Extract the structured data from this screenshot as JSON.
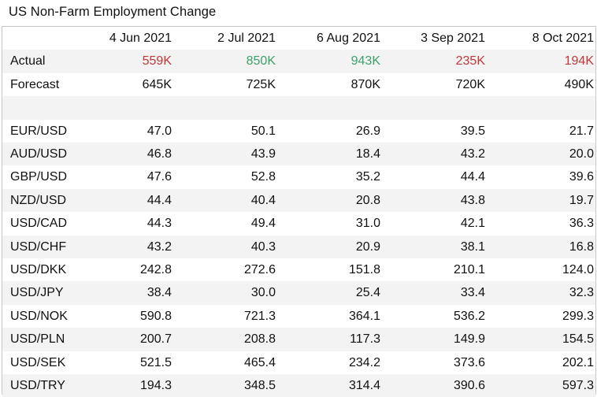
{
  "title": "US Non-Farm Employment Change",
  "columns": [
    "",
    "4 Jun 2021",
    "2 Jul 2021",
    "6 Aug 2021",
    "3 Sep 2021",
    "8 Oct 2021"
  ],
  "colors": {
    "below_forecast": "#c0383a",
    "above_forecast": "#3f9f6a",
    "row_shade": "#f3f3f3"
  },
  "actual": {
    "label": "Actual",
    "values": [
      "559K",
      "850K",
      "943K",
      "235K",
      "194K"
    ],
    "status": [
      "below",
      "above",
      "above",
      "below",
      "below"
    ]
  },
  "forecast": {
    "label": "Forecast",
    "values": [
      "645K",
      "725K",
      "870K",
      "720K",
      "490K"
    ]
  },
  "pairs": [
    {
      "label": "EUR/USD",
      "values": [
        "47.0",
        "50.1",
        "26.9",
        "39.5",
        "21.7"
      ]
    },
    {
      "label": "AUD/USD",
      "values": [
        "46.8",
        "43.9",
        "18.4",
        "43.2",
        "20.0"
      ]
    },
    {
      "label": "GBP/USD",
      "values": [
        "47.6",
        "52.8",
        "35.2",
        "44.4",
        "39.6"
      ]
    },
    {
      "label": "NZD/USD",
      "values": [
        "44.4",
        "40.4",
        "20.8",
        "43.8",
        "19.7"
      ]
    },
    {
      "label": "USD/CAD",
      "values": [
        "44.3",
        "49.4",
        "31.0",
        "42.1",
        "36.3"
      ]
    },
    {
      "label": "USD/CHF",
      "values": [
        "43.2",
        "40.3",
        "20.9",
        "38.1",
        "16.8"
      ]
    },
    {
      "label": "USD/DKK",
      "values": [
        "242.8",
        "272.6",
        "151.8",
        "210.1",
        "124.0"
      ]
    },
    {
      "label": "USD/JPY",
      "values": [
        "38.4",
        "30.0",
        "25.4",
        "33.4",
        "32.3"
      ]
    },
    {
      "label": "USD/NOK",
      "values": [
        "590.8",
        "721.3",
        "364.1",
        "536.2",
        "299.3"
      ]
    },
    {
      "label": "USD/PLN",
      "values": [
        "200.7",
        "208.8",
        "117.3",
        "149.9",
        "154.5"
      ]
    },
    {
      "label": "USD/SEK",
      "values": [
        "521.5",
        "465.4",
        "234.2",
        "373.6",
        "202.1"
      ]
    },
    {
      "label": "USD/TRY",
      "values": [
        "194.3",
        "348.5",
        "314.4",
        "390.6",
        "597.3"
      ]
    }
  ]
}
